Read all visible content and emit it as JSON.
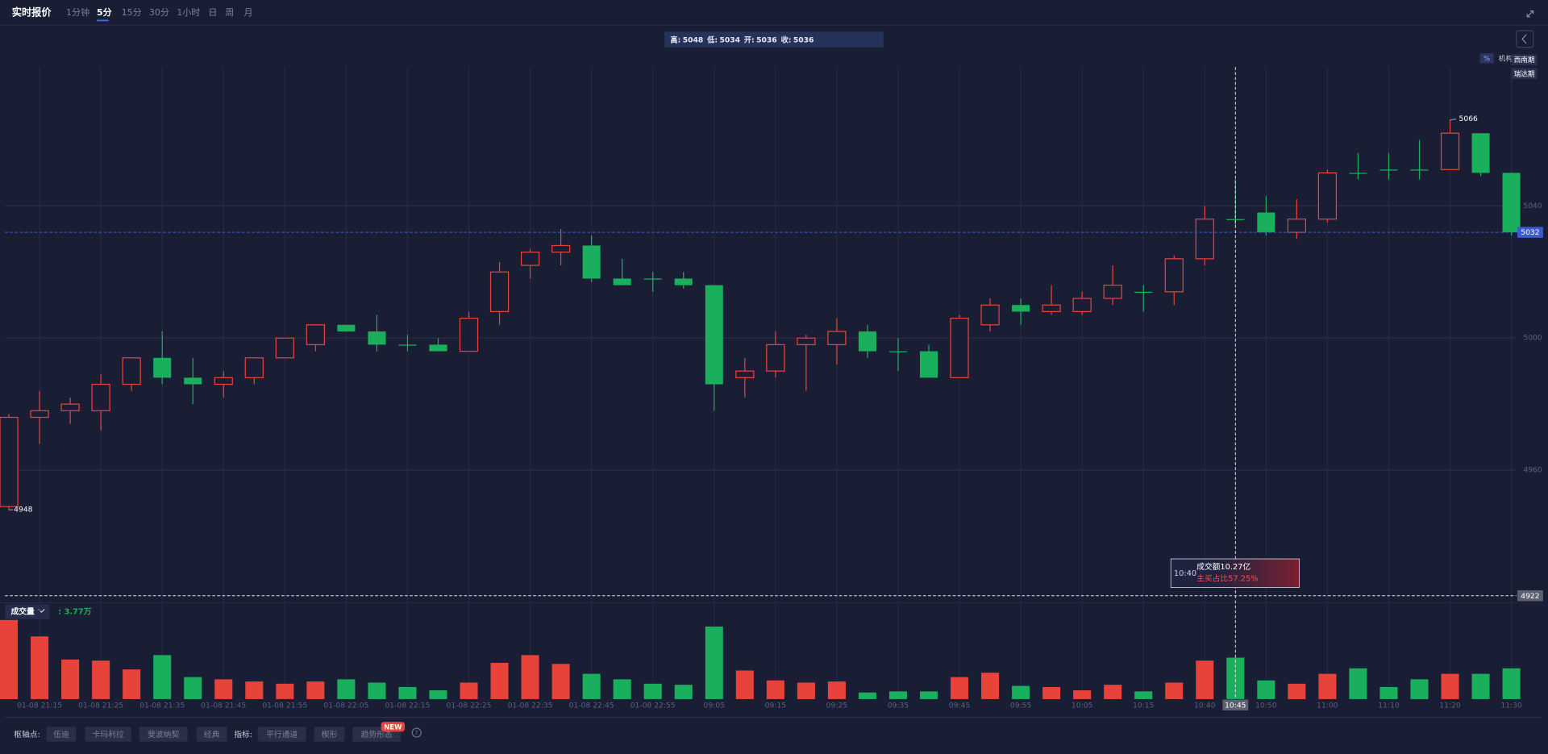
{
  "toolbar": {
    "title": "实时报价",
    "intervals": [
      "1分钟",
      "5分",
      "15分",
      "30分",
      "1小时",
      "日",
      "周",
      "月"
    ],
    "active": "5分"
  },
  "chart_data": {
    "type": "candlestick",
    "categories": [
      null,
      "01-08 21:15",
      null,
      "01-08 21:25",
      null,
      "01-08 21:35",
      null,
      "01-08 21:45",
      null,
      "01-08 21:55",
      null,
      "01-08 22:05",
      null,
      "01-08 22:15",
      null,
      "01-08 22:25",
      null,
      "01-08 22:35",
      null,
      "01-08 22:45",
      null,
      "01-08 22:55",
      null,
      "09:05",
      null,
      "09:15",
      null,
      "09:25",
      null,
      "09:35",
      null,
      "09:45",
      null,
      "09:55",
      null,
      "10:05",
      null,
      "10:15",
      null,
      "10:40",
      "10:45",
      "10:50",
      null,
      "11:00",
      null,
      "11:10",
      null,
      "11:20",
      null,
      "11:30"
    ],
    "open": [
      4949,
      4976,
      4978,
      4978,
      4986,
      4994,
      4988,
      4986,
      4988,
      4994,
      4998,
      5004,
      5002,
      4998,
      4998,
      4996,
      5008,
      5022,
      5026,
      5028,
      5018,
      5018,
      5018,
      5016,
      4988,
      4990,
      4998,
      4998,
      5002,
      4996,
      4996,
      4988,
      5004,
      5010,
      5008,
      5008,
      5012,
      5014,
      5014,
      5024,
      5036,
      5038,
      5032,
      5036,
      5050,
      5051,
      5051,
      5051,
      5062,
      5050
    ],
    "high": [
      4977,
      4984,
      4982,
      4989,
      4994,
      5002,
      4994,
      4990,
      4994,
      5000,
      5004,
      5004,
      5007,
      5001,
      5000,
      5008,
      5023,
      5027,
      5033,
      5031,
      5024,
      5020,
      5020,
      5016,
      4994,
      5002,
      5001,
      5006,
      5004,
      5000,
      4998,
      5007,
      5012,
      5012,
      5016,
      5014,
      5022,
      5016,
      5025,
      5040,
      5048,
      5043,
      5042,
      5051,
      5056,
      5056,
      5060,
      5066,
      5062,
      5050
    ],
    "low": [
      4948,
      4968,
      4974,
      4972,
      4984,
      4986,
      4980,
      4982,
      4986,
      4994,
      4996,
      5002,
      4996,
      4996,
      4996,
      4996,
      5004,
      5018,
      5022,
      5017,
      5016,
      5014,
      5015,
      4978,
      4982,
      4988,
      4984,
      4992,
      4994,
      4990,
      4988,
      4988,
      5002,
      5004,
      5007,
      5007,
      5010,
      5008,
      5010,
      5022,
      5034,
      5031,
      5030,
      5035,
      5048,
      5048,
      5048,
      5051,
      5049,
      5031
    ],
    "close": [
      4976,
      4978,
      4980,
      4986,
      4994,
      4988,
      4986,
      4988,
      4994,
      5000,
      5004,
      5002,
      4998,
      4998,
      4996,
      5006,
      5020,
      5026,
      5028,
      5018,
      5016,
      5018,
      5016,
      4986,
      4990,
      4998,
      5000,
      5002,
      4996,
      4996,
      4988,
      5006,
      5010,
      5008,
      5010,
      5012,
      5016,
      5014,
      5024,
      5036,
      5036,
      5032,
      5036,
      5050,
      5050,
      5051,
      5051,
      5062,
      5050,
      5032
    ],
    "volume": [
      7.2,
      5.7,
      3.6,
      3.5,
      2.7,
      4.0,
      2.0,
      1.8,
      1.6,
      1.4,
      1.6,
      1.8,
      1.5,
      1.1,
      0.8,
      1.5,
      3.3,
      4.0,
      3.2,
      2.3,
      1.8,
      1.4,
      1.3,
      6.6,
      2.6,
      1.7,
      1.5,
      1.6,
      0.6,
      0.7,
      0.7,
      2.0,
      2.4,
      1.2,
      1.1,
      0.8,
      1.3,
      0.7,
      1.5,
      3.5,
      3.77,
      1.7,
      1.4,
      2.3,
      2.8,
      1.1,
      1.8,
      2.3,
      2.3,
      2.8
    ],
    "ylim": [
      4920,
      5082
    ],
    "yticks": [
      4960,
      5000,
      5040
    ],
    "volume_ylim": [
      0,
      7.5
    ],
    "up_color": "#e8433a",
    "down_color": "#1aaf5d",
    "grid": true,
    "ohlc_labels": [
      "高:",
      "低:",
      "开:",
      "收:"
    ],
    "crosshair": {
      "x": "10:45",
      "y": 4922
    }
  },
  "volume_panel": {
    "name": "成交量",
    "value_label": ": 3.77万"
  },
  "tooltip": {
    "time": "10:40",
    "amount": "成交额10.27亿",
    "buy_ratio": "主买占比57.25%"
  },
  "right_labels": {
    "percent": "%",
    "org": "机构",
    "broker_1": "西南期",
    "broker_2": "瑞达期"
  },
  "bottom_bar": {
    "pivot_label": "枢轴点:",
    "pivots": [
      "伍迪",
      "卡玛利拉",
      "斐波纳契",
      "经典"
    ],
    "indicator_label": "指标:",
    "indicators": [
      "平行通道",
      "楔形",
      "趋势形态"
    ],
    "badge": "NEW",
    "help": "?"
  }
}
